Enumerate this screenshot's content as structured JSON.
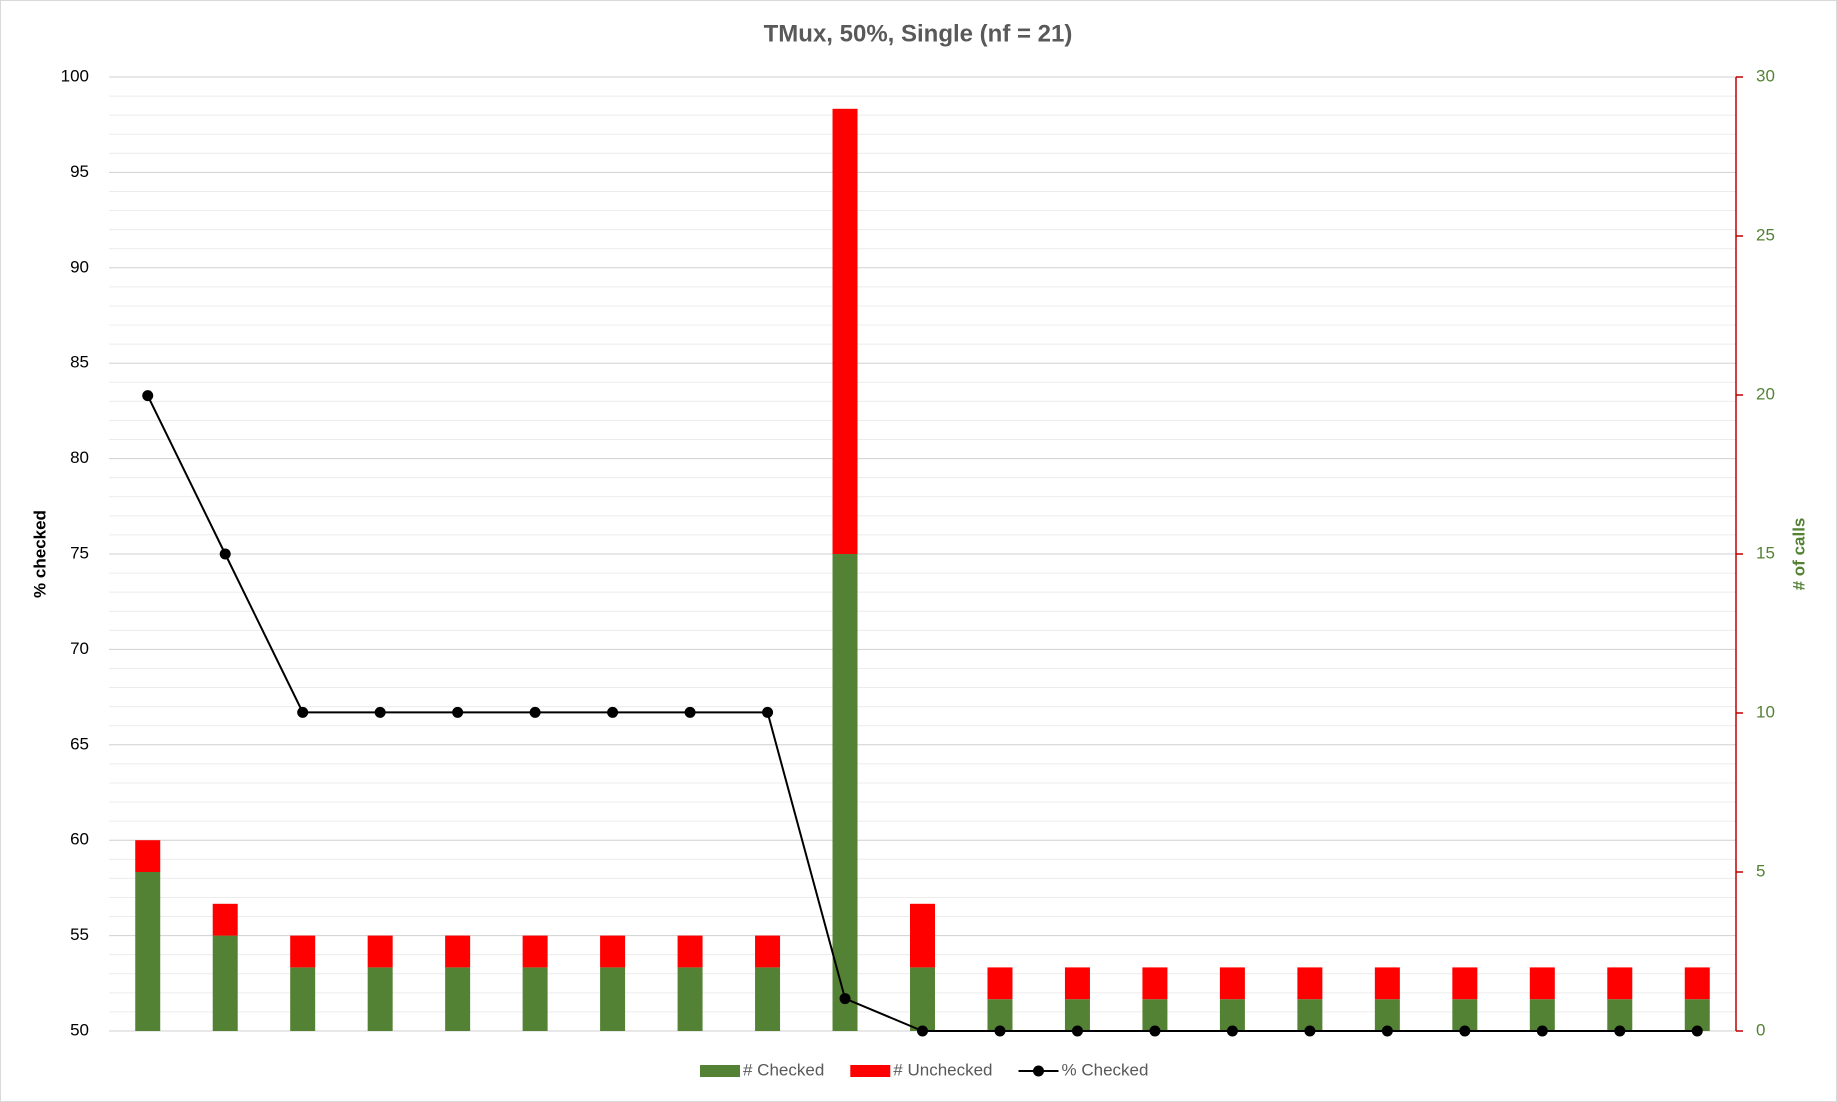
{
  "chart_data": {
    "type": "bar_line",
    "title": "TMux, 50%, Single (nf = 21)",
    "y_label": "% checked",
    "y2_label": "# of calls",
    "categories": [
      null,
      null,
      null,
      null,
      null,
      null,
      null,
      null,
      null,
      null,
      null,
      null,
      null,
      null,
      null,
      null,
      null,
      null,
      null,
      null,
      null
    ],
    "series": [
      {
        "name": "# Checked",
        "type": "bar",
        "stacked": true,
        "axis": "y2",
        "color": "#548235",
        "values": [
          5,
          3,
          2,
          2,
          2,
          2,
          2,
          2,
          2,
          15,
          2,
          1,
          1,
          1,
          1,
          1,
          1,
          1,
          1,
          1,
          1
        ]
      },
      {
        "name": "# Unchecked",
        "type": "bar",
        "stacked": true,
        "axis": "y2",
        "color": "#ff0000",
        "values": [
          1,
          1,
          1,
          1,
          1,
          1,
          1,
          1,
          1,
          14,
          2,
          1,
          1,
          1,
          1,
          1,
          1,
          1,
          1,
          1,
          1
        ]
      },
      {
        "name": "% Checked",
        "type": "line",
        "axis": "y",
        "color": "#000000",
        "values": [
          83.3,
          75,
          66.7,
          66.7,
          66.7,
          66.7,
          66.7,
          66.7,
          66.7,
          51.7,
          50,
          50,
          50,
          50,
          50,
          50,
          50,
          50,
          50,
          50,
          50
        ]
      }
    ],
    "ylim": [
      50,
      100
    ],
    "yticks": [
      50,
      55,
      60,
      65,
      70,
      75,
      80,
      85,
      90,
      95,
      100
    ],
    "y2lim": [
      0,
      30
    ],
    "y2ticks": [
      0,
      5,
      10,
      15,
      20,
      25,
      30
    ],
    "grid": true,
    "legend": "bottom"
  }
}
